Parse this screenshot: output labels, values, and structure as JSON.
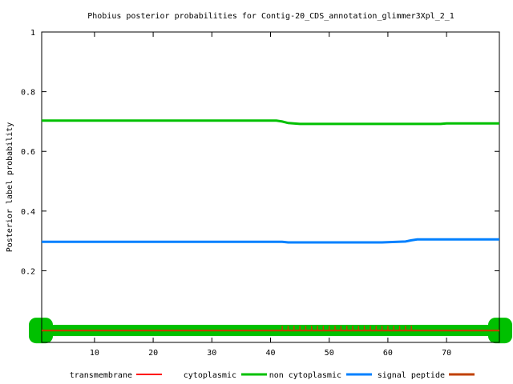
{
  "chart_data": {
    "type": "line",
    "title": "Phobius posterior probabilities for Contig-20_CDS_annotation_glimmer3Xpl_2_1",
    "xlabel": "",
    "ylabel": "Posterior label probability",
    "xlim": [
      1,
      79
    ],
    "ylim": [
      -0.04,
      1
    ],
    "x_ticks": [
      10,
      20,
      30,
      40,
      50,
      60,
      70
    ],
    "y_ticks": [
      0.2,
      0.4,
      0.6,
      0.8,
      1
    ],
    "grid": false,
    "legend_position": "bottom",
    "legend": [
      "transmembrane",
      "cytoplasmic",
      "non cytoplasmic",
      "signal peptide"
    ],
    "series": [
      {
        "name": "cytoplasmic",
        "color": "#00c000",
        "points": [
          [
            1,
            0.703
          ],
          [
            41,
            0.703
          ],
          [
            42,
            0.7
          ],
          [
            43,
            0.695
          ],
          [
            45,
            0.692
          ],
          [
            69,
            0.692
          ],
          [
            70,
            0.694
          ],
          [
            79,
            0.694
          ]
        ]
      },
      {
        "name": "non cytoplasmic",
        "color": "#0080ff",
        "points": [
          [
            1,
            0.297
          ],
          [
            42,
            0.297
          ],
          [
            43,
            0.295
          ],
          [
            59,
            0.295
          ],
          [
            63,
            0.298
          ],
          [
            64,
            0.302
          ],
          [
            65,
            0.305
          ],
          [
            79,
            0.305
          ]
        ]
      },
      {
        "name": "transmembrane",
        "color": "#ff0000",
        "points": [
          [
            1,
            0.0
          ],
          [
            79,
            0.0
          ]
        ]
      },
      {
        "name": "signal peptide",
        "color": "#c04000",
        "points": [
          [
            1,
            0.0
          ],
          [
            79,
            0.0
          ]
        ]
      }
    ],
    "topology_band": {
      "label": "cytoplasmic",
      "color": "#00c000",
      "range": [
        1,
        79
      ]
    },
    "signal_peptide_ticks": [
      42,
      43,
      44,
      45,
      46,
      47,
      48,
      49,
      50,
      51,
      52,
      53,
      54,
      55,
      56,
      57,
      58,
      59,
      60,
      61,
      62,
      63,
      64
    ],
    "signal_peptide_tick_height": 0.016
  }
}
